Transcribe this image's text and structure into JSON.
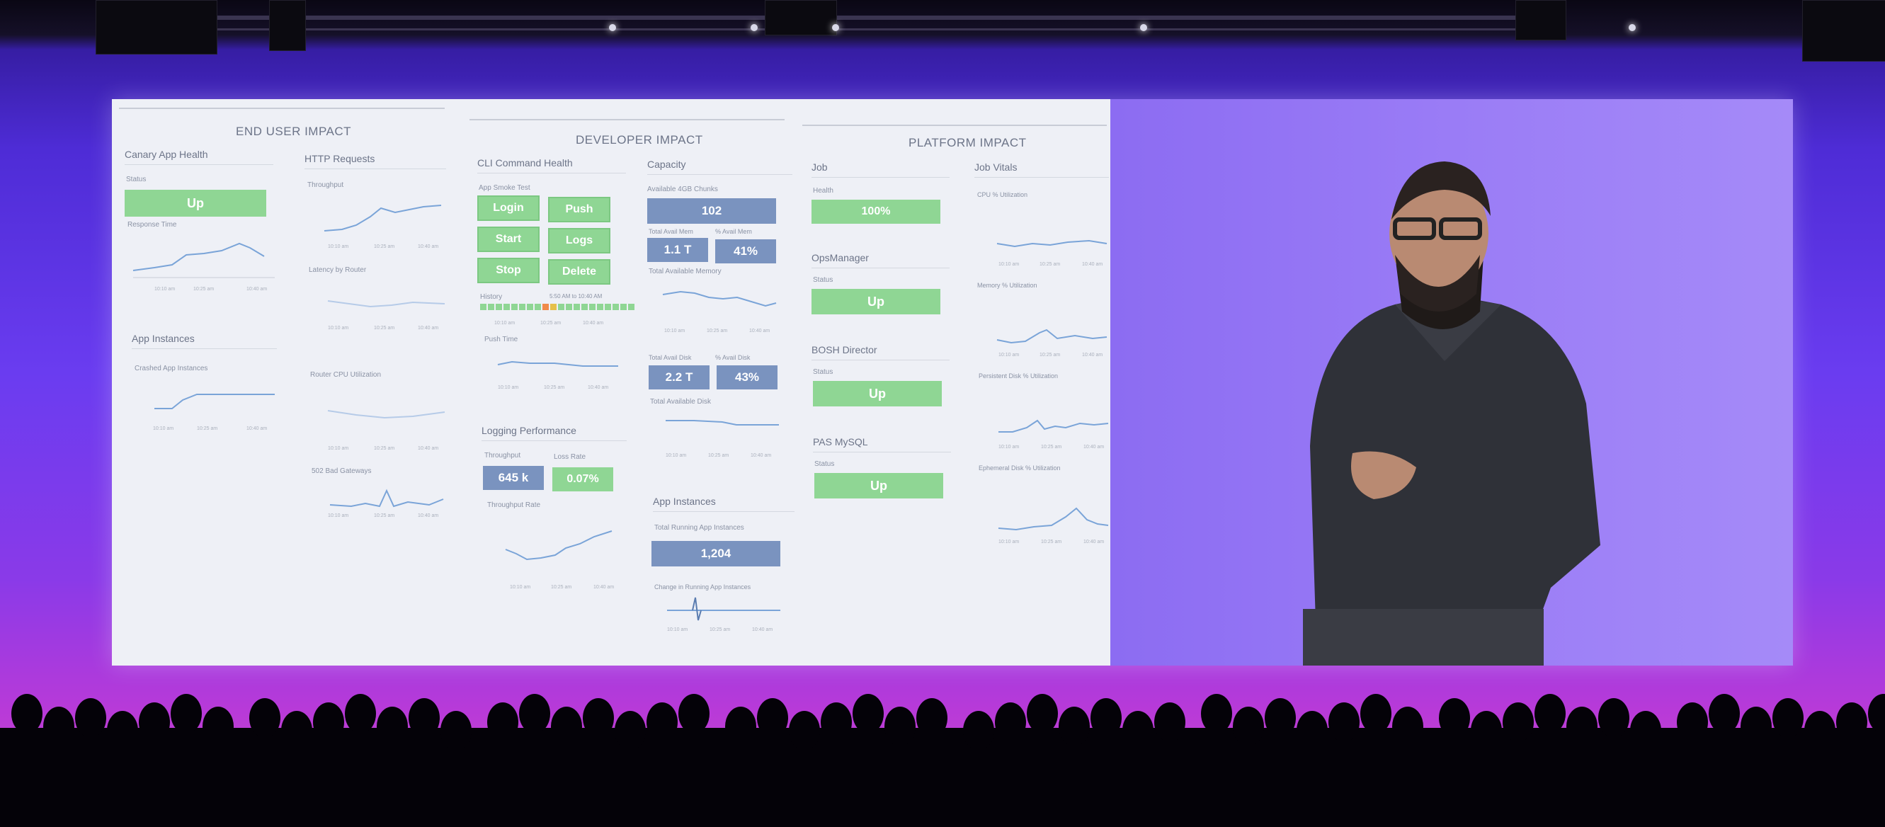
{
  "colors": {
    "status_green": "#8fd694",
    "stat_blue": "#7a93bf",
    "line": "#7aa4d8",
    "stage_purple": "#6a3cf0"
  },
  "sections": {
    "end_user": "END USER IMPACT",
    "developer": "DEVELOPER IMPACT",
    "platform": "PLATFORM IMPACT"
  },
  "end_user": {
    "canary": {
      "title": "Canary App Health",
      "status_label": "Status",
      "status_value": "Up",
      "response_label": "Response Time"
    },
    "http": {
      "title": "HTTP Requests",
      "throughput": "Throughput",
      "latency": "Latency by Router",
      "cpu": "Router CPU Utilization",
      "bad_gateways": "502 Bad Gateways"
    },
    "instances": {
      "title": "App Instances",
      "crashed": "Crashed App Instances"
    }
  },
  "developer": {
    "cli": {
      "title": "CLI Command Health",
      "smoke": "App Smoke Test",
      "buttons": [
        "Login",
        "Push",
        "Start",
        "Logs",
        "Stop",
        "Delete"
      ],
      "history_label": "History",
      "history_time": "5:50 AM to 10:40 AM",
      "push_time": "Push Time"
    },
    "logging": {
      "title": "Logging Performance",
      "throughput_label": "Throughput",
      "throughput_value": "645 k",
      "loss_label": "Loss Rate",
      "loss_value": "0.07%",
      "rate_label": "Throughput Rate"
    },
    "capacity": {
      "title": "Capacity",
      "chunks_label": "Available 4GB Chunks",
      "chunks_value": "102",
      "mem_label": "Total Avail Mem",
      "mem_value": "1.1 T",
      "mem_pct_label": "% Avail Mem",
      "mem_pct_value": "41%",
      "mem_chart": "Total Available Memory",
      "disk_label": "Total Avail Disk",
      "disk_value": "2.2 T",
      "disk_pct_label": "% Avail Disk",
      "disk_pct_value": "43%",
      "disk_chart": "Total Available Disk"
    },
    "app_instances": {
      "title": "App Instances",
      "total_label": "Total Running App Instances",
      "total_value": "1,204",
      "change_label": "Change in Running App Instances"
    }
  },
  "platform": {
    "job": {
      "title": "Job",
      "health_label": "Health",
      "health_value": "100%"
    },
    "opsman": {
      "title": "OpsManager",
      "status_label": "Status",
      "status_value": "Up"
    },
    "bosh": {
      "title": "BOSH Director",
      "status_label": "Status",
      "status_value": "Up"
    },
    "mysql": {
      "title": "PAS MySQL",
      "status_label": "Status",
      "status_value": "Up"
    },
    "vitals": {
      "title": "Job Vitals",
      "cpu": "CPU % Utilization",
      "memory": "Memory % Utilization",
      "persistent": "Persistent Disk % Utilization",
      "ephemeral": "Ephemeral Disk % Utilization"
    }
  },
  "ticks": {
    "t1": "10:10 am",
    "t2": "10:25 am",
    "t3": "10:40 am"
  }
}
